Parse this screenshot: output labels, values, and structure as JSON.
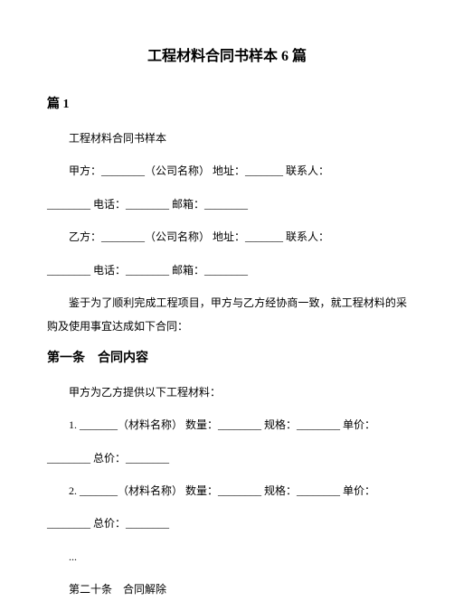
{
  "title": "工程材料合同书样本 6 篇",
  "section_label": "篇 1",
  "intro_line": "工程材料合同书样本",
  "party_a_line1": "甲方：________（公司名称） 地址：_______  联系人：",
  "party_a_line2": "________  电话：________  邮箱：________",
  "party_b_line1": "乙方：________（公司名称） 地址：_______  联系人：",
  "party_b_line2": "________  电话：________  邮箱：________",
  "whereas": "鉴于为了顺利完成工程项目，甲方与乙方经协商一致，就工程材料的采购及使用事宜达成如下合同：",
  "article1_header": "第一条　合同内容",
  "article1_intro": "甲方为乙方提供以下工程材料：",
  "item1_line1": "1. _______（材料名称） 数量：________  规格：________  单价：",
  "item1_line2": "________  总价：________",
  "item2_line1": "2. _______（材料名称） 数量：________  规格：________  单价：",
  "item2_line2": "________  总价：________",
  "ellipsis": "...",
  "article20": "第二十条　合同解除"
}
